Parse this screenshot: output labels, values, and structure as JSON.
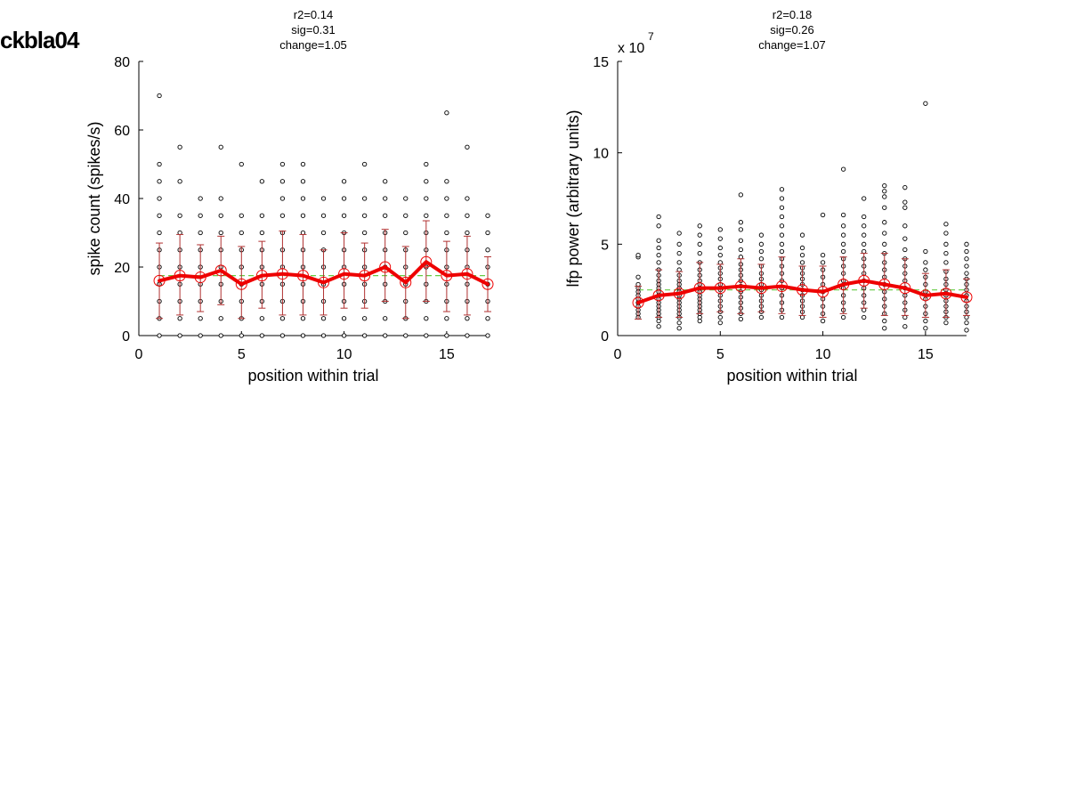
{
  "figure": {
    "title": "ckbla04"
  },
  "chart_data": [
    {
      "type": "scatter",
      "stats": [
        "r2=0.14",
        "sig=0.31",
        "change=1.05"
      ],
      "xlabel": "position within trial",
      "ylabel": "spike count (spikes/s)",
      "exponent_label": "",
      "xlim": [
        0,
        17
      ],
      "ylim": [
        0,
        80
      ],
      "xticks": [
        0,
        5,
        10,
        15
      ],
      "yticks": [
        0,
        20,
        40,
        60,
        80
      ],
      "ytick_labels": [
        "0",
        "20",
        "40",
        "60",
        "80"
      ],
      "grid": false,
      "mean": [
        16,
        17.5,
        17,
        19,
        15,
        17.5,
        18,
        17.5,
        15.5,
        18,
        17.5,
        20,
        15.5,
        21.5,
        17.5,
        18,
        15
      ],
      "error_low": [
        5,
        6,
        7,
        9,
        5,
        8,
        6,
        6,
        6,
        8,
        8,
        10,
        5,
        10,
        7,
        6,
        7
      ],
      "error_high": [
        27,
        29.5,
        26.5,
        29,
        26,
        27.5,
        30.5,
        29.5,
        25,
        30,
        27,
        31,
        26,
        33.5,
        27.5,
        29,
        23
      ],
      "fit_level": 17.5,
      "trials": [
        [
          0,
          5,
          10,
          15,
          15,
          20,
          25,
          30,
          35,
          40,
          45,
          50,
          70
        ],
        [
          0,
          5,
          10,
          15,
          20,
          25,
          30,
          35,
          45,
          55
        ],
        [
          0,
          5,
          10,
          15,
          20,
          25,
          30,
          35,
          40
        ],
        [
          0,
          5,
          10,
          15,
          20,
          25,
          30,
          35,
          40,
          55
        ],
        [
          0,
          5,
          10,
          15,
          20,
          25,
          30,
          35,
          50
        ],
        [
          0,
          5,
          10,
          15,
          20,
          25,
          30,
          35,
          45
        ],
        [
          0,
          5,
          10,
          15,
          20,
          25,
          30,
          35,
          40,
          45,
          50
        ],
        [
          0,
          5,
          10,
          15,
          20,
          25,
          30,
          35,
          40,
          45,
          50
        ],
        [
          0,
          5,
          10,
          15,
          20,
          25,
          30,
          35,
          40
        ],
        [
          0,
          5,
          10,
          15,
          20,
          25,
          30,
          35,
          40,
          45
        ],
        [
          0,
          5,
          10,
          15,
          20,
          25,
          30,
          35,
          40,
          50
        ],
        [
          0,
          5,
          10,
          15,
          20,
          25,
          30,
          35,
          40,
          45
        ],
        [
          0,
          5,
          10,
          15,
          20,
          25,
          30,
          35,
          40
        ],
        [
          0,
          5,
          10,
          15,
          20,
          25,
          30,
          35,
          40,
          45,
          50
        ],
        [
          0,
          5,
          10,
          15,
          20,
          25,
          30,
          35,
          40,
          45,
          65
        ],
        [
          0,
          5,
          10,
          15,
          20,
          25,
          30,
          35,
          40,
          55
        ],
        [
          0,
          5,
          10,
          15,
          20,
          25,
          30,
          35
        ]
      ]
    },
    {
      "type": "scatter",
      "stats": [
        "r2=0.18",
        "sig=0.26",
        "change=1.07"
      ],
      "xlabel": "position within trial",
      "ylabel": "lfp power (arbitrary units)",
      "exponent_label": "x 10",
      "exponent": "7",
      "xlim": [
        0,
        17
      ],
      "ylim": [
        0,
        15
      ],
      "xticks": [
        0,
        5,
        10,
        15
      ],
      "yticks": [
        0,
        5,
        10,
        15
      ],
      "ytick_labels": [
        "0",
        "5",
        "10",
        "15"
      ],
      "grid": false,
      "mean": [
        1.8,
        2.2,
        2.3,
        2.6,
        2.6,
        2.7,
        2.6,
        2.7,
        2.5,
        2.4,
        2.8,
        3.0,
        2.8,
        2.6,
        2.2,
        2.3,
        2.1
      ],
      "error_low": [
        0.9,
        1.0,
        1.0,
        1.2,
        1.3,
        1.2,
        1.3,
        1.2,
        1.1,
        1.0,
        1.2,
        1.5,
        1.1,
        1.1,
        1.0,
        1.0,
        1.1
      ],
      "error_high": [
        2.7,
        3.6,
        3.5,
        4.0,
        3.9,
        4.2,
        3.9,
        4.3,
        3.8,
        3.8,
        4.3,
        4.5,
        4.5,
        4.2,
        3.4,
        3.6,
        3.1
      ],
      "fit_level": 2.5,
      "trials": [
        [
          1.0,
          1.2,
          1.4,
          1.6,
          1.8,
          2.0,
          2.2,
          2.4,
          2.6,
          2.8,
          3.2,
          4.3,
          4.4
        ],
        [
          0.5,
          0.8,
          1.0,
          1.2,
          1.4,
          1.6,
          1.8,
          2.0,
          2.2,
          2.4,
          2.6,
          2.8,
          3.0,
          3.3,
          3.6,
          4.0,
          4.4,
          4.8,
          5.2,
          6.0,
          6.5
        ],
        [
          0.4,
          0.7,
          1.0,
          1.2,
          1.4,
          1.6,
          1.8,
          2.0,
          2.2,
          2.4,
          2.6,
          2.8,
          3.0,
          3.3,
          3.6,
          4.0,
          4.5,
          5.0,
          5.6
        ],
        [
          0.8,
          1.0,
          1.2,
          1.4,
          1.6,
          1.8,
          2.0,
          2.2,
          2.4,
          2.6,
          2.8,
          3.0,
          3.3,
          3.6,
          4.0,
          4.5,
          5.0,
          5.5,
          6.0
        ],
        [
          0.7,
          1.0,
          1.3,
          1.6,
          1.9,
          2.2,
          2.5,
          2.8,
          3.1,
          3.4,
          3.7,
          4.0,
          4.4,
          4.8,
          5.3,
          5.8
        ],
        [
          0.9,
          1.2,
          1.5,
          1.8,
          2.1,
          2.4,
          2.7,
          3.0,
          3.3,
          3.6,
          3.9,
          4.3,
          4.7,
          5.2,
          5.8,
          6.2,
          7.7
        ],
        [
          1.0,
          1.3,
          1.6,
          1.9,
          2.2,
          2.5,
          2.8,
          3.1,
          3.4,
          3.8,
          4.2,
          4.6,
          5.0,
          5.5
        ],
        [
          1.0,
          1.4,
          1.8,
          2.2,
          2.6,
          3.0,
          3.4,
          3.8,
          4.2,
          4.6,
          5.0,
          5.5,
          6.0,
          6.5,
          7.0,
          7.5,
          8.0
        ],
        [
          1.0,
          1.3,
          1.6,
          1.9,
          2.2,
          2.5,
          2.8,
          3.1,
          3.4,
          3.7,
          4.0,
          4.4,
          4.8,
          5.5
        ],
        [
          0.8,
          1.2,
          1.6,
          2.0,
          2.4,
          2.8,
          3.2,
          3.6,
          4.0,
          4.4,
          6.6
        ],
        [
          1.0,
          1.4,
          1.8,
          2.2,
          2.6,
          3.0,
          3.4,
          3.8,
          4.2,
          4.6,
          5.0,
          5.5,
          6.0,
          6.6,
          9.1
        ],
        [
          1.0,
          1.4,
          1.8,
          2.2,
          2.6,
          3.0,
          3.4,
          3.8,
          4.2,
          4.6,
          5.0,
          5.5,
          6.0,
          6.5,
          7.5
        ],
        [
          0.4,
          0.8,
          1.2,
          1.6,
          2.0,
          2.4,
          2.8,
          3.2,
          3.6,
          4.0,
          4.5,
          5.0,
          5.6,
          6.2,
          7.0,
          7.6,
          7.9,
          8.2
        ],
        [
          0.5,
          1.0,
          1.4,
          1.8,
          2.2,
          2.6,
          3.0,
          3.4,
          3.8,
          4.2,
          4.7,
          5.3,
          6.0,
          7.0,
          7.3,
          8.1
        ],
        [
          0.4,
          0.8,
          1.2,
          1.6,
          2.0,
          2.4,
          2.8,
          3.2,
          3.6,
          4.0,
          4.6,
          12.7
        ],
        [
          0.7,
          1.0,
          1.3,
          1.6,
          1.9,
          2.2,
          2.5,
          2.8,
          3.1,
          3.5,
          4.0,
          4.5,
          5.0,
          5.6,
          6.1
        ],
        [
          0.3,
          0.7,
          1.0,
          1.3,
          1.6,
          1.9,
          2.2,
          2.5,
          2.8,
          3.1,
          3.4,
          3.8,
          4.2,
          4.6,
          5.0
        ]
      ]
    }
  ],
  "colors": {
    "mean_line": "#ee0000",
    "error_bar": "#b03030",
    "fit_line": "#66cc44",
    "trial_marker": "#000000"
  }
}
